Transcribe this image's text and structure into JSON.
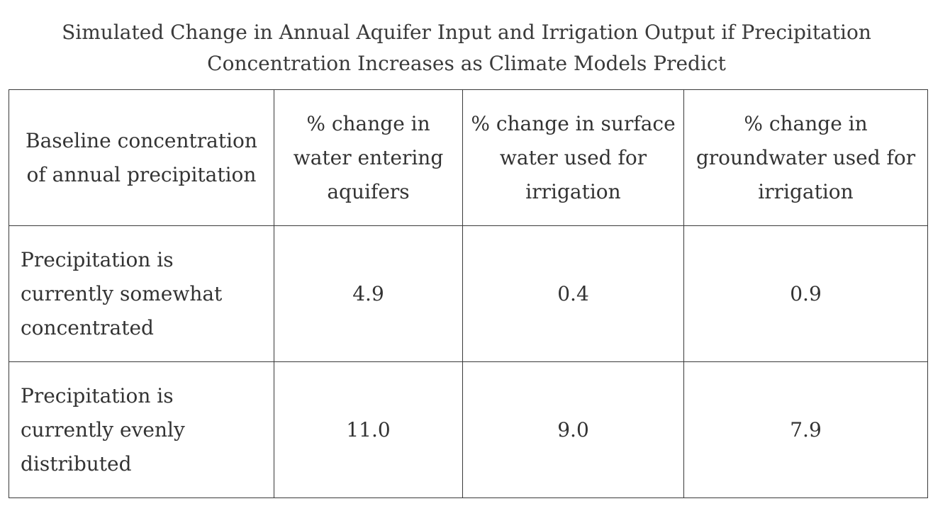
{
  "chart_data": {
    "type": "table",
    "title_lines": [
      "Simulated Change in Annual Aquifer Input and Irrigation Output if Precipitation",
      "Concentration Increases as Climate Models Predict"
    ],
    "columns": [
      "Baseline concentration of annual precipitation",
      "% change in water entering aquifers",
      "% change in surface water used for irrigation",
      "% change in groundwater used for irrigation"
    ],
    "rows": [
      {
        "label": "Precipitation is currently somewhat concentrated",
        "values": [
          "4.9",
          "0.4",
          "0.9"
        ]
      },
      {
        "label": "Precipitation is currently evenly distributed",
        "values": [
          "11.0",
          "9.0",
          "7.9"
        ]
      }
    ]
  }
}
